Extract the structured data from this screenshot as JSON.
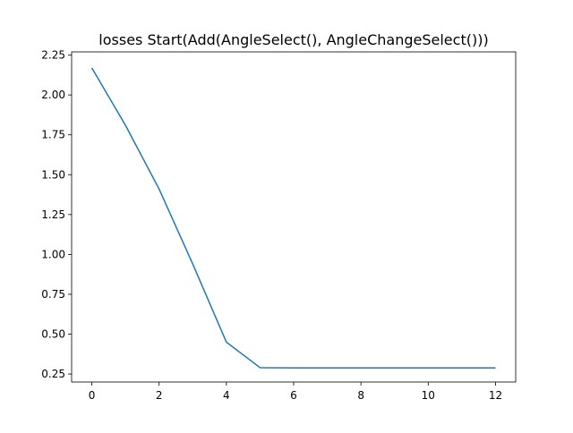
{
  "chart_data": {
    "type": "line",
    "title": "losses Start(Add(AngleSelect(), AngleChangeSelect()))",
    "xlabel": "",
    "ylabel": "",
    "xlim": [
      -0.6,
      12.6
    ],
    "ylim": [
      0.2,
      2.27
    ],
    "x_ticks": [
      0,
      2,
      4,
      6,
      8,
      10,
      12
    ],
    "x_tick_labels": [
      "0",
      "2",
      "4",
      "6",
      "8",
      "10",
      "12"
    ],
    "y_ticks": [
      0.25,
      0.5,
      0.75,
      1.0,
      1.25,
      1.5,
      1.75,
      2.0,
      2.25
    ],
    "y_tick_labels": [
      "0.25",
      "0.50",
      "0.75",
      "1.00",
      "1.25",
      "1.50",
      "1.75",
      "2.00",
      "2.25"
    ],
    "grid": false,
    "series": [
      {
        "color": "#1f77b4",
        "x": [
          0,
          1,
          2,
          3,
          4,
          5,
          6,
          7,
          8,
          9,
          10,
          11,
          12
        ],
        "y": [
          2.17,
          1.81,
          1.41,
          0.94,
          0.45,
          0.29,
          0.288,
          0.288,
          0.288,
          0.288,
          0.288,
          0.288,
          0.288
        ]
      }
    ]
  }
}
